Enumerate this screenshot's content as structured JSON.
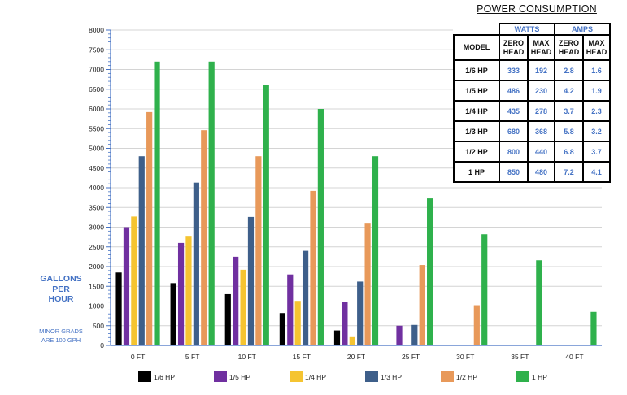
{
  "y_axis_label_lines": [
    "GALLONS",
    "PER",
    "HOUR"
  ],
  "y_axis_note_lines": [
    "MINOR GRADS",
    "ARE 100 GPH"
  ],
  "chart_data": {
    "type": "bar",
    "title": "",
    "xlabel": "",
    "ylabel": "GALLONS PER HOUR",
    "ylim": [
      0,
      8000
    ],
    "y_major_ticks": [
      0,
      500,
      1000,
      1500,
      2000,
      2500,
      3000,
      3500,
      4000,
      4500,
      5000,
      5500,
      6000,
      6500,
      7000,
      7500,
      8000
    ],
    "y_minor_step": 100,
    "grid": true,
    "legend_position": "bottom",
    "categories": [
      "0 FT",
      "5 FT",
      "10 FT",
      "15 FT",
      "20 FT",
      "25 FT",
      "30 FT",
      "35 FT",
      "40 FT"
    ],
    "series": [
      {
        "name": "1/6 HP",
        "color": "#000000",
        "values": [
          1850,
          1580,
          1300,
          820,
          380,
          0,
          0,
          0,
          0
        ]
      },
      {
        "name": "1/5 HP",
        "color": "#7030a0",
        "values": [
          3000,
          2600,
          2250,
          1800,
          1100,
          500,
          0,
          0,
          0
        ]
      },
      {
        "name": "1/4 HP",
        "color": "#f5c431",
        "values": [
          3270,
          2780,
          1920,
          1130,
          210,
          0,
          0,
          0,
          0
        ]
      },
      {
        "name": "1/3 HP",
        "color": "#3e5f8a",
        "values": [
          4800,
          4130,
          3260,
          2400,
          1620,
          520,
          0,
          0,
          0
        ]
      },
      {
        "name": "1/2 HP",
        "color": "#e8995a",
        "values": [
          5920,
          5460,
          4800,
          3920,
          3110,
          2040,
          1020,
          0,
          0
        ]
      },
      {
        "name": "1 HP",
        "color": "#2fb14c",
        "values": [
          7200,
          7200,
          6600,
          6000,
          4800,
          3730,
          2820,
          2160,
          850
        ]
      }
    ]
  },
  "power_table": {
    "title": "POWER CONSUMPTION",
    "group_watts": "WATTS",
    "group_amps": "AMPS",
    "model_header": "MODEL",
    "zero_head": [
      "ZERO",
      "HEAD"
    ],
    "max_head": [
      "MAX",
      "HEAD"
    ],
    "rows": [
      {
        "model": "1/6 HP",
        "watts_zero": "333",
        "watts_max": "192",
        "amps_zero": "2.8",
        "amps_max": "1.6"
      },
      {
        "model": "1/5 HP",
        "watts_zero": "486",
        "watts_max": "230",
        "amps_zero": "4.2",
        "amps_max": "1.9"
      },
      {
        "model": "1/4 HP",
        "watts_zero": "435",
        "watts_max": "278",
        "amps_zero": "3.7",
        "amps_max": "2.3"
      },
      {
        "model": "1/3 HP",
        "watts_zero": "680",
        "watts_max": "368",
        "amps_zero": "5.8",
        "amps_max": "3.2"
      },
      {
        "model": "1/2 HP",
        "watts_zero": "800",
        "watts_max": "440",
        "amps_zero": "6.8",
        "amps_max": "3.7"
      },
      {
        "model": "1 HP",
        "watts_zero": "850",
        "watts_max": "480",
        "amps_zero": "7.2",
        "amps_max": "4.1"
      }
    ]
  }
}
